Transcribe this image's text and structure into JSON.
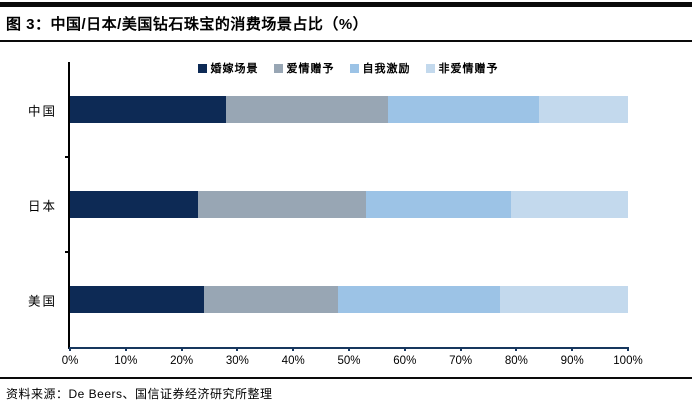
{
  "figure": {
    "title": "图 3：中国/日本/美国钻石珠宝的消费场景占比（%）",
    "source": "资料来源：De Beers、国信证券经济研究所整理"
  },
  "colors": {
    "top_rule": "#0a0a0a",
    "axis_line": "#17375e",
    "navy": "#0d2a55",
    "gray_blue": "#98a6b4",
    "medium_blue": "#9cc3e6",
    "light_blue": "#c3d9ed"
  },
  "chart_data": {
    "type": "bar",
    "orientation": "horizontal",
    "stacked": true,
    "title": "中国/日本/美国钻石珠宝的消费场景占比（%）",
    "categories": [
      "中国",
      "日本",
      "美国"
    ],
    "series": [
      {
        "name": "婚嫁场景",
        "color_key": "navy",
        "values": [
          28,
          23,
          24
        ]
      },
      {
        "name": "爱情赠予",
        "color_key": "gray_blue",
        "values": [
          29,
          30,
          24
        ]
      },
      {
        "name": "自我激励",
        "color_key": "medium_blue",
        "values": [
          27,
          26,
          29
        ]
      },
      {
        "name": "非爱情赠予",
        "color_key": "light_blue",
        "values": [
          16,
          21,
          23
        ]
      }
    ],
    "xlim": [
      0,
      100
    ],
    "x_ticks": [
      "0%",
      "10%",
      "20%",
      "30%",
      "40%",
      "50%",
      "60%",
      "70%",
      "80%",
      "90%",
      "100%"
    ],
    "legend_position": "top",
    "grid": false
  }
}
